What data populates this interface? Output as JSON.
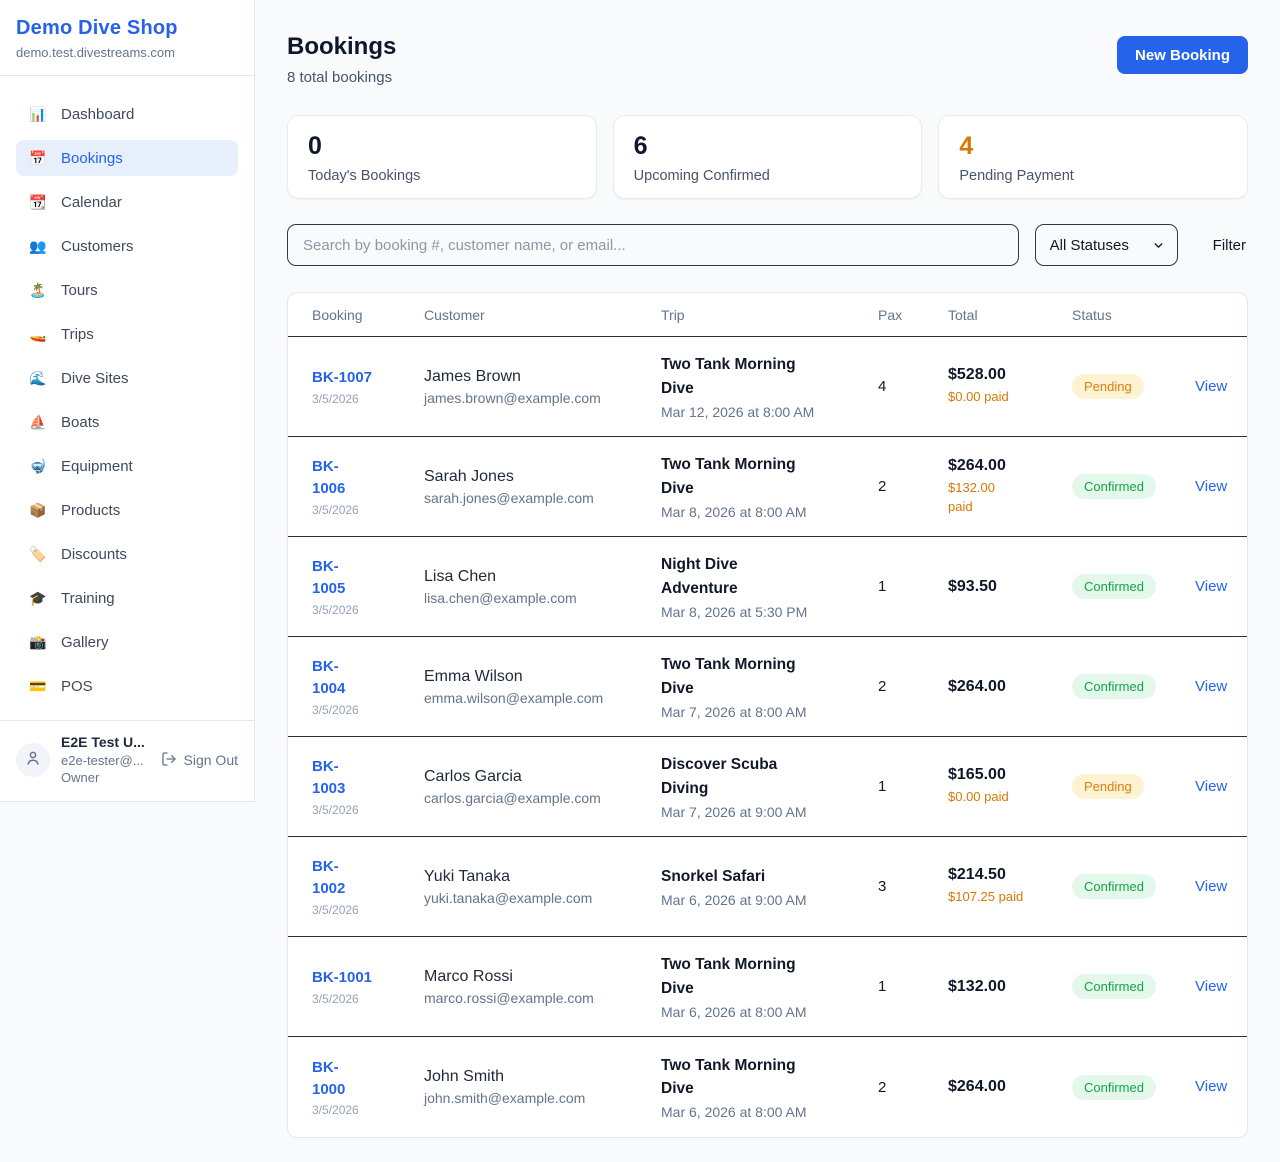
{
  "colors": {
    "accent_blue": "#2563eb",
    "pending_text": "#dd7d12",
    "pending_bg": "#fdf3d2",
    "confirmed_text": "#16a34a",
    "confirmed_bg": "#e3f8eb",
    "paid_orange": "#d97706",
    "stat_accent_orange": "#d97706"
  },
  "sidebar": {
    "shop_name": "Demo Dive Shop",
    "domain": "demo.test.divestreams.com",
    "items": [
      {
        "key": "dashboard",
        "label": "Dashboard",
        "icon": "📊",
        "active": false
      },
      {
        "key": "bookings",
        "label": "Bookings",
        "icon": "📅",
        "active": true
      },
      {
        "key": "calendar",
        "label": "Calendar",
        "icon": "📆",
        "active": false
      },
      {
        "key": "customers",
        "label": "Customers",
        "icon": "👥",
        "active": false
      },
      {
        "key": "tours",
        "label": "Tours",
        "icon": "🏝️",
        "active": false
      },
      {
        "key": "trips",
        "label": "Trips",
        "icon": "🚤",
        "active": false
      },
      {
        "key": "dive-sites",
        "label": "Dive Sites",
        "icon": "🌊",
        "active": false
      },
      {
        "key": "boats",
        "label": "Boats",
        "icon": "⛵",
        "active": false
      },
      {
        "key": "equipment",
        "label": "Equipment",
        "icon": "🤿",
        "active": false
      },
      {
        "key": "products",
        "label": "Products",
        "icon": "📦",
        "active": false
      },
      {
        "key": "discounts",
        "label": "Discounts",
        "icon": "🏷️",
        "active": false
      },
      {
        "key": "training",
        "label": "Training",
        "icon": "🎓",
        "active": false
      },
      {
        "key": "gallery",
        "label": "Gallery",
        "icon": "📸",
        "active": false
      },
      {
        "key": "pos",
        "label": "POS",
        "icon": "💳",
        "active": false
      }
    ],
    "user": {
      "name": "E2E Test U...",
      "email": "e2e-tester@...",
      "role": "Owner",
      "sign_out": "Sign Out"
    }
  },
  "header": {
    "title": "Bookings",
    "subtitle": "8 total bookings",
    "new_booking": "New Booking"
  },
  "stats": [
    {
      "value": "0",
      "label": "Today's Bookings",
      "accent": false
    },
    {
      "value": "6",
      "label": "Upcoming Confirmed",
      "accent": false
    },
    {
      "value": "4",
      "label": "Pending Payment",
      "accent": true
    }
  ],
  "controls": {
    "search_placeholder": "Search by booking #, customer name, or email...",
    "status_filter": "All Statuses",
    "filter_label": "Filter"
  },
  "table": {
    "headers": [
      "Booking",
      "Customer",
      "Trip",
      "Pax",
      "Total",
      "Status"
    ],
    "view_label": "View",
    "rows": [
      {
        "id": "BK-1007",
        "id_wrap": false,
        "date": "3/5/2026",
        "customer": "James Brown",
        "email": "james.brown@example.com",
        "trip": "Two Tank Morning Dive",
        "trip_when": "Mar 12, 2026 at 8:00 AM",
        "pax": "4",
        "total": "$528.00",
        "paid": "$0.00 paid",
        "paid_wrap": false,
        "status": "Pending"
      },
      {
        "id": "BK-1006",
        "id_wrap": true,
        "date": "3/5/2026",
        "customer": "Sarah Jones",
        "email": "sarah.jones@example.com",
        "trip": "Two Tank Morning Dive",
        "trip_when": "Mar 8, 2026 at 8:00 AM",
        "pax": "2",
        "total": "$264.00",
        "paid": "$132.00 paid",
        "paid_wrap": true,
        "status": "Confirmed"
      },
      {
        "id": "BK-1005",
        "id_wrap": true,
        "date": "3/5/2026",
        "customer": "Lisa Chen",
        "email": "lisa.chen@example.com",
        "trip": "Night Dive Adventure",
        "trip_when": "Mar 8, 2026 at 5:30 PM",
        "pax": "1",
        "total": "$93.50",
        "paid": null,
        "paid_wrap": false,
        "status": "Confirmed"
      },
      {
        "id": "BK-1004",
        "id_wrap": true,
        "date": "3/5/2026",
        "customer": "Emma Wilson",
        "email": "emma.wilson@example.com",
        "trip": "Two Tank Morning Dive",
        "trip_when": "Mar 7, 2026 at 8:00 AM",
        "pax": "2",
        "total": "$264.00",
        "paid": null,
        "paid_wrap": false,
        "status": "Confirmed"
      },
      {
        "id": "BK-1003",
        "id_wrap": true,
        "date": "3/5/2026",
        "customer": "Carlos Garcia",
        "email": "carlos.garcia@example.com",
        "trip": "Discover Scuba Diving",
        "trip_when": "Mar 7, 2026 at 9:00 AM",
        "pax": "1",
        "total": "$165.00",
        "paid": "$0.00 paid",
        "paid_wrap": false,
        "status": "Pending"
      },
      {
        "id": "BK-1002",
        "id_wrap": true,
        "date": "3/5/2026",
        "customer": "Yuki Tanaka",
        "email": "yuki.tanaka@example.com",
        "trip": "Snorkel Safari",
        "trip_when": "Mar 6, 2026 at 9:00 AM",
        "pax": "3",
        "total": "$214.50",
        "paid": "$107.25 paid",
        "paid_wrap": false,
        "status": "Confirmed"
      },
      {
        "id": "BK-1001",
        "id_wrap": false,
        "date": "3/5/2026",
        "customer": "Marco Rossi",
        "email": "marco.rossi@example.com",
        "trip": "Two Tank Morning Dive",
        "trip_when": "Mar 6, 2026 at 8:00 AM",
        "pax": "1",
        "total": "$132.00",
        "paid": null,
        "paid_wrap": false,
        "status": "Confirmed"
      },
      {
        "id": "BK-1000",
        "id_wrap": true,
        "date": "3/5/2026",
        "customer": "John Smith",
        "email": "john.smith@example.com",
        "trip": "Two Tank Morning Dive",
        "trip_when": "Mar 6, 2026 at 8:00 AM",
        "pax": "2",
        "total": "$264.00",
        "paid": null,
        "paid_wrap": false,
        "status": "Confirmed"
      }
    ]
  }
}
